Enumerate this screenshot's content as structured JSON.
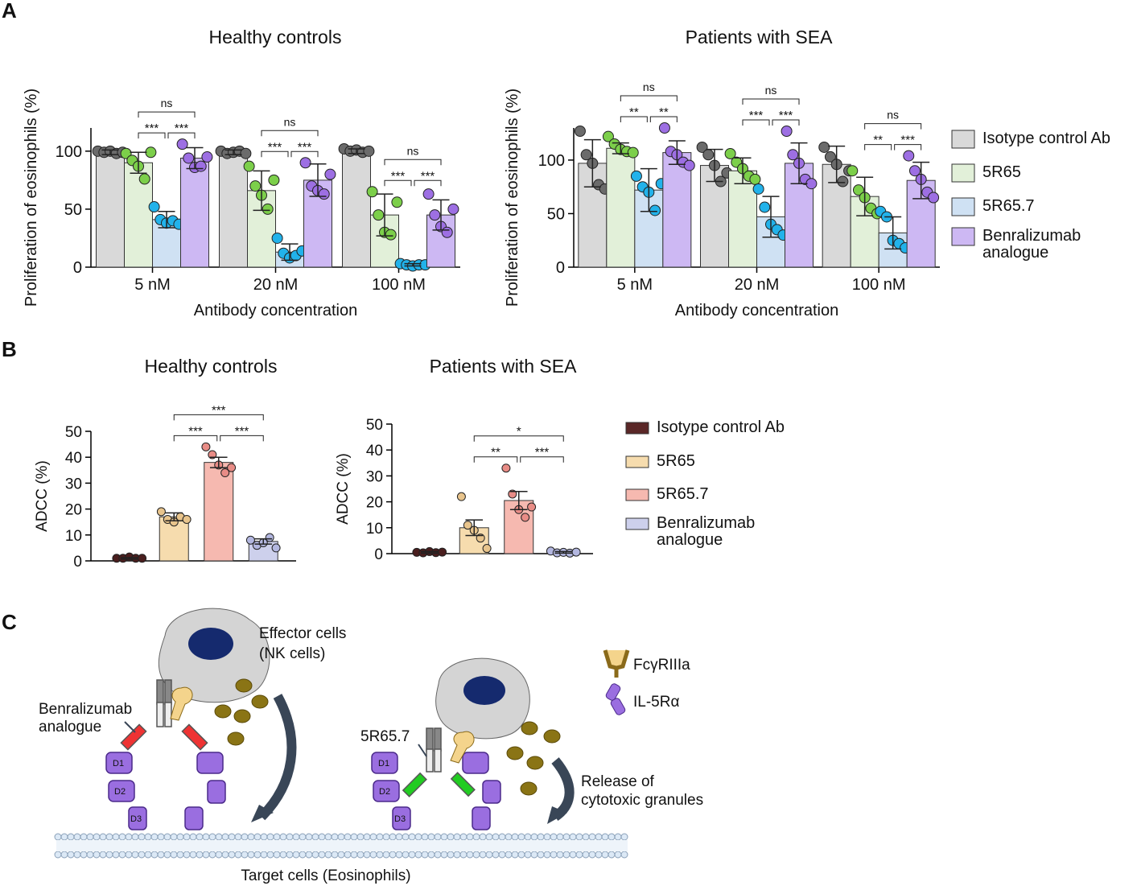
{
  "panel_labels": [
    "A",
    "B",
    "C"
  ],
  "chart_data": [
    {
      "type": "bar",
      "title": "Healthy controls",
      "ylabel": "Proliferation of eosinophils (%)",
      "xlabel": "Antibody concentration",
      "categories": [
        "5 nM",
        "20 nM",
        "100 nM"
      ],
      "ylim": [
        0,
        120
      ],
      "yticks": [
        0,
        50,
        100
      ],
      "series": [
        {
          "color": "#d9d9d9",
          "point_color": "#6b6b6b",
          "values": [
            99,
            99,
            100
          ],
          "errors": [
            2,
            2,
            2
          ],
          "points": [
            [
              100,
              99,
              100,
              98,
              99
            ],
            [
              100,
              98,
              99,
              100,
              98
            ],
            [
              102,
              100,
              101,
              99,
              100
            ]
          ]
        },
        {
          "color": "#e2f0d9",
          "point_color": "#7ccf4a",
          "values": [
            90,
            66,
            45
          ],
          "errors": [
            9,
            17,
            18
          ],
          "points": [
            [
              98,
              92,
              87,
              76,
              99
            ],
            [
              87,
              70,
              62,
              50,
              75
            ],
            [
              65,
              45,
              30,
              28,
              56
            ]
          ]
        },
        {
          "color": "#cfe1f3",
          "point_color": "#22b2ea",
          "values": [
            41,
            13,
            2
          ],
          "errors": [
            7,
            7,
            1
          ],
          "points": [
            [
              52,
              41,
              38,
              40,
              37
            ],
            [
              25,
              12,
              8,
              10,
              14
            ],
            [
              3,
              2,
              1,
              2,
              2
            ]
          ]
        },
        {
          "color": "#cdb8f3",
          "point_color": "#9d6fe3",
          "values": [
            94,
            75,
            45
          ],
          "errors": [
            9,
            14,
            13
          ],
          "points": [
            [
              106,
              94,
              86,
              87,
              95
            ],
            [
              90,
              70,
              66,
              63,
              80
            ],
            [
              63,
              45,
              35,
              30,
              50
            ]
          ]
        }
      ],
      "brackets": [
        [
          "***",
          "***",
          "ns"
        ],
        [
          "***",
          "***",
          "ns"
        ],
        [
          "***",
          "***",
          "ns"
        ]
      ]
    },
    {
      "type": "bar",
      "title": "Patients with SEA",
      "ylabel": "Proliferation of eosinophils (%)",
      "xlabel": "Antibody concentration",
      "categories": [
        "5 nM",
        "20 nM",
        "100 nM"
      ],
      "ylim": [
        0,
        130
      ],
      "yticks": [
        0,
        50,
        100
      ],
      "series": [
        {
          "name": "Isotype control Ab",
          "color": "#d9d9d9",
          "point_color": "#6b6b6b",
          "values": [
            97,
            95,
            96
          ],
          "errors": [
            22,
            15,
            17
          ],
          "points": [
            [
              127,
              105,
              97,
              77,
              73
            ],
            [
              112,
              105,
              95,
              80,
              88
            ],
            [
              112,
              103,
              96,
              80,
              90
            ]
          ]
        },
        {
          "name": "5R65",
          "color": "#e2f0d9",
          "point_color": "#7ccf4a",
          "values": [
            111,
            90,
            66
          ],
          "errors": [
            5,
            12,
            18
          ],
          "points": [
            [
              122,
              115,
              110,
              108,
              107
            ],
            [
              106,
              98,
              92,
              85,
              82
            ],
            [
              90,
              72,
              65,
              55,
              50
            ]
          ]
        },
        {
          "name": "5R65.7",
          "color": "#cfe1f3",
          "point_color": "#22b2ea",
          "values": [
            72,
            47,
            32
          ],
          "errors": [
            20,
            19,
            15
          ],
          "points": [
            [
              85,
              75,
              70,
              53,
              78
            ],
            [
              73,
              56,
              40,
              35,
              30
            ],
            [
              52,
              47,
              25,
              22,
              18
            ]
          ]
        },
        {
          "name": "Benralizumab analogue",
          "color": "#cdb8f3",
          "point_color": "#9d6fe3",
          "values": [
            107,
            97,
            81
          ],
          "errors": [
            11,
            19,
            17
          ],
          "points": [
            [
              130,
              108,
              105,
              98,
              95
            ],
            [
              127,
              105,
              97,
              82,
              78
            ],
            [
              104,
              90,
              82,
              70,
              65
            ]
          ]
        }
      ],
      "brackets": [
        [
          "**",
          "**",
          "ns"
        ],
        [
          "***",
          "***",
          "ns"
        ],
        [
          "**",
          "***",
          "ns"
        ]
      ]
    },
    {
      "type": "bar",
      "title": "Healthy controls",
      "ylabel": "ADCC (%)",
      "categories": [
        null
      ],
      "ylim": [
        0,
        50
      ],
      "yticks": [
        0,
        10,
        20,
        30,
        40,
        50
      ],
      "series": [
        {
          "color": "#5a2727",
          "point_color": "#4a1e1e",
          "values": [
            1
          ],
          "errors": [
            0.3
          ],
          "points": [
            [
              1,
              1,
              1.5,
              1,
              1
            ]
          ]
        },
        {
          "color": "#f6dcae",
          "point_color": "#e8c48c",
          "values": [
            17
          ],
          "errors": [
            1.5
          ],
          "points": [
            [
              19,
              16,
              15,
              17,
              16
            ]
          ]
        },
        {
          "color": "#f6b9b0",
          "point_color": "#e88c86",
          "values": [
            38
          ],
          "errors": [
            2
          ],
          "points": [
            [
              44,
              41,
              37,
              34,
              36
            ]
          ]
        },
        {
          "color": "#cdd0ec",
          "point_color": "#b3b7e0",
          "values": [
            7.5
          ],
          "errors": [
            1
          ],
          "points": [
            [
              8,
              6,
              7,
              9,
              5
            ]
          ]
        }
      ],
      "brackets": [
        [
          "***",
          "***",
          "***"
        ]
      ]
    },
    {
      "type": "bar",
      "title": "Patients with SEA",
      "ylabel": "ADCC (%)",
      "categories": [
        null
      ],
      "ylim": [
        0,
        50
      ],
      "yticks": [
        0,
        10,
        20,
        30,
        40,
        50
      ],
      "series": [
        {
          "name": "Isotype control Ab",
          "color": "#5a2727",
          "point_color": "#4a1e1e",
          "values": [
            0.5
          ],
          "errors": [
            0.3
          ],
          "points": [
            [
              0.5,
              0.3,
              0.8,
              0.4,
              0.6
            ]
          ]
        },
        {
          "name": "5R65",
          "color": "#f6dcae",
          "point_color": "#e8c48c",
          "values": [
            10
          ],
          "errors": [
            3
          ],
          "points": [
            [
              22,
              11,
              9,
              6,
              2
            ]
          ]
        },
        {
          "name": "5R65.7",
          "color": "#f6b9b0",
          "point_color": "#e88c86",
          "values": [
            20.5
          ],
          "errors": [
            3.5
          ],
          "points": [
            [
              33,
              23,
              17,
              14,
              18
            ]
          ]
        },
        {
          "name": "Benralizumab analogue",
          "color": "#cdd0ec",
          "point_color": "#b3b7e0",
          "values": [
            0.5
          ],
          "errors": [
            0.3
          ],
          "points": [
            [
              1,
              0.3,
              0.5,
              0.2,
              0.6
            ]
          ]
        }
      ],
      "brackets": [
        [
          "**",
          "***",
          "*"
        ]
      ]
    }
  ],
  "diagram": {
    "effector_label": [
      "Effector cells",
      "(NK cells)"
    ],
    "benralizumab_label": [
      "Benralizumab",
      "analogue"
    ],
    "antibody_label": "5R65.7",
    "domains": [
      "D1",
      "D2",
      "D3"
    ],
    "legend": [
      "FcγRIIIa",
      "IL-5Rα"
    ],
    "release_label": [
      "Release of",
      "cytotoxic granules"
    ],
    "target_label": "Target cells (Eosinophils)"
  }
}
